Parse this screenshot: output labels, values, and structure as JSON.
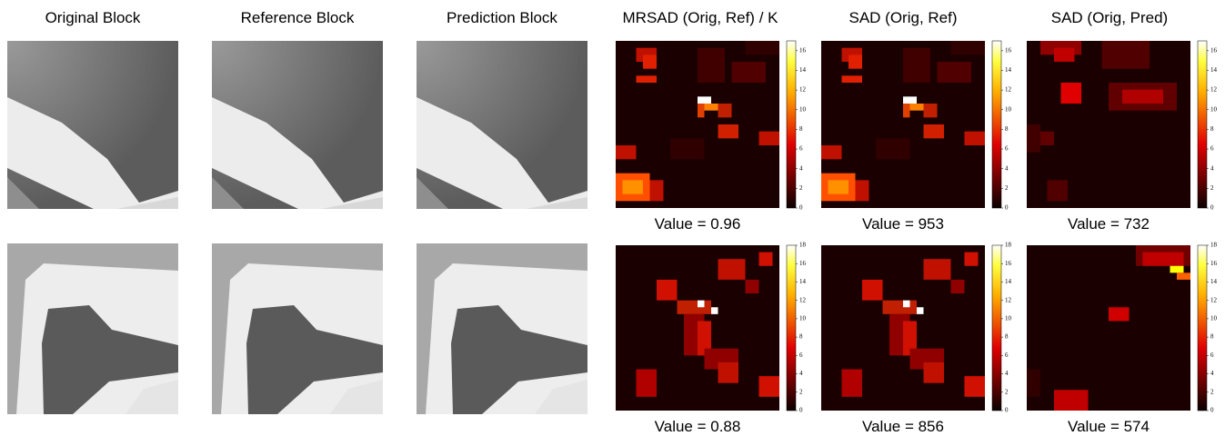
{
  "columns": [
    "Original Block",
    "Reference Block",
    "Prediction Block",
    "MRSAD (Orig, Ref) / K",
    "SAD (Orig, Ref)",
    "SAD (Orig, Pred)"
  ],
  "rows": [
    {
      "value_labels": [
        "Value = 0.96",
        "Value = 953",
        "Value = 732"
      ],
      "colorbar": {
        "range": [
          0,
          17
        ],
        "ticks": [
          0,
          2,
          4,
          6,
          8,
          10,
          12,
          14,
          16
        ]
      }
    },
    {
      "value_labels": [
        "Value = 0.88",
        "Value = 856",
        "Value = 574"
      ],
      "colorbar": {
        "range": [
          0,
          18
        ],
        "ticks": [
          0,
          2,
          4,
          6,
          8,
          10,
          12,
          14,
          16,
          18
        ]
      }
    }
  ]
}
